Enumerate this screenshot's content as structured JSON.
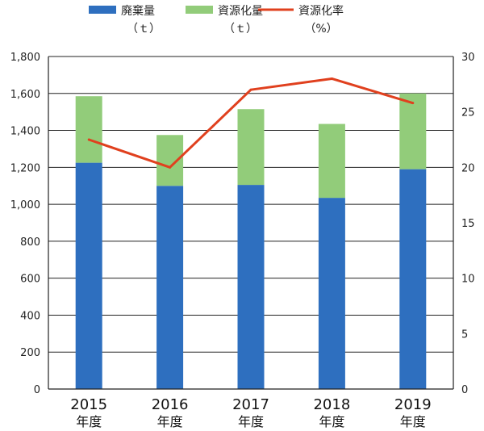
{
  "chart_data": {
    "type": "bar",
    "stacked": true,
    "categories": [
      {
        "year": "2015",
        "suffix": "年度"
      },
      {
        "year": "2016",
        "suffix": "年度"
      },
      {
        "year": "2017",
        "suffix": "年度"
      },
      {
        "year": "2018",
        "suffix": "年度"
      },
      {
        "year": "2019",
        "suffix": "年度"
      }
    ],
    "series": [
      {
        "name": "廃棄量",
        "unit": "（ｔ）",
        "kind": "bar",
        "axis": "left",
        "color": "#2e6fbf",
        "values": [
          1225,
          1100,
          1105,
          1035,
          1190
        ]
      },
      {
        "name": "資源化量",
        "unit": "（ｔ）",
        "kind": "bar",
        "axis": "left",
        "color": "#92cc7a",
        "values": [
          360,
          275,
          410,
          400,
          410
        ]
      },
      {
        "name": "資源化率",
        "unit": "（%）",
        "kind": "line",
        "axis": "right",
        "color": "#e0401e",
        "values": [
          22.5,
          20.0,
          27.0,
          28.0,
          25.8
        ]
      }
    ],
    "y_left": {
      "min": 0,
      "max": 1800,
      "ticks": [
        "0",
        "200",
        "400",
        "600",
        "800",
        "1,000",
        "1,200",
        "1,400",
        "1,600",
        "1,800"
      ]
    },
    "y_right": {
      "min": 0,
      "max": 30,
      "ticks": [
        "0",
        "5",
        "10",
        "15",
        "20",
        "25",
        "30"
      ]
    },
    "grid": true,
    "legend_position": "top"
  }
}
